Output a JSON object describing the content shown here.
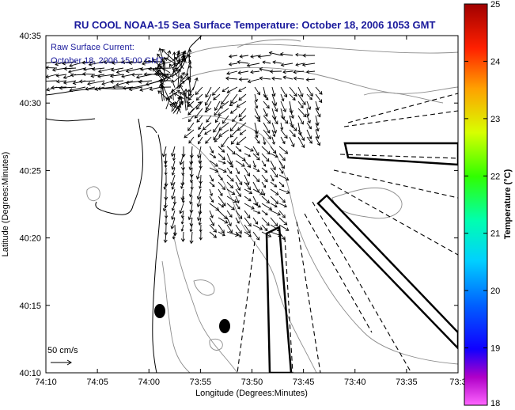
{
  "title": "RU COOL  NOAA-15  Sea Surface Temperature:  October 18, 2006 1053 GMT",
  "annotation": {
    "line1": "Raw Surface Current:",
    "line2": "October 18, 2006 15:00 GMT"
  },
  "scale_label": "50 cm/s",
  "xlabel": "Longitude (Degrees:Minutes)",
  "ylabel": "Latitude (Degrees:Minutes)",
  "x_ticks": [
    "74:10",
    "74:05",
    "74:00",
    "73:55",
    "73:50",
    "73:45",
    "73:40",
    "73:35",
    "73:3"
  ],
  "y_ticks": [
    "40:35",
    "40:30",
    "40:25",
    "40:20",
    "40:15",
    "40:10"
  ],
  "colorbar": {
    "label": "Temperature (°C)",
    "ticks": [
      "25",
      "24",
      "23",
      "22",
      "21",
      "20",
      "19",
      "18"
    ],
    "min": 18,
    "max": 25
  },
  "colors": {
    "title": "#1a1a9c",
    "land_outline": "#000000",
    "bathymetry": "#8c8c8c",
    "vectors": "#000000"
  }
}
